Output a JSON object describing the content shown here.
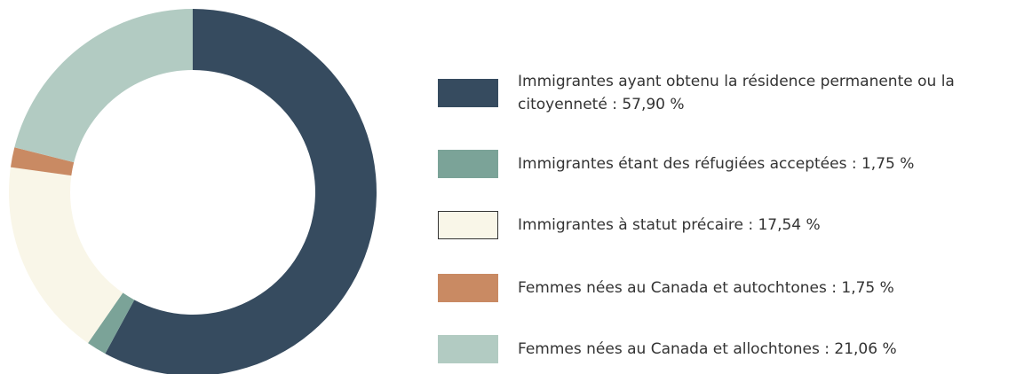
{
  "chart_data": {
    "type": "donut",
    "categories": [
      "Immigrantes ayant obtenu la résidence permanente ou la citoyenneté : 57,90 %",
      "Immigrantes étant des réfugiées acceptées  : 1,75 %",
      "Immigrantes à statut précaire : 17,54 %",
      "Femmes nées au Canada et autochtones : 1,75 %",
      "Femmes nées au Canada et allochtones : 21,06 %"
    ],
    "values": [
      57.9,
      1.75,
      17.54,
      1.75,
      21.06
    ],
    "colors": [
      "#364b5f",
      "#7ba398",
      "#f9f6e8",
      "#c98a63",
      "#b2cbc2"
    ],
    "legend": "right"
  }
}
